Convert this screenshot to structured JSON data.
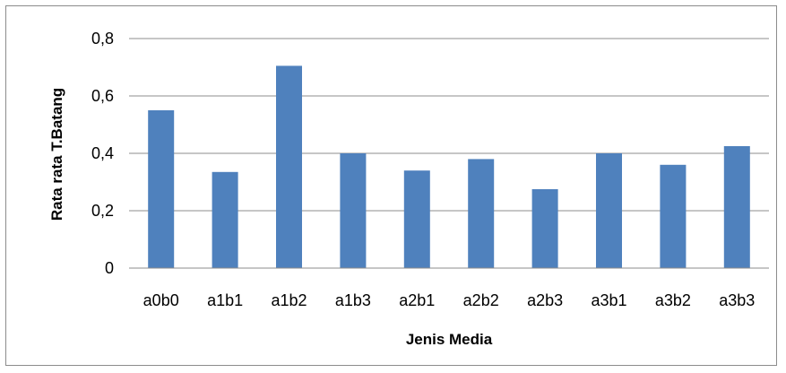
{
  "chart_data": {
    "type": "bar",
    "title": "",
    "xlabel": "Jenis Media",
    "ylabel": "Rata rata T.Batang",
    "categories": [
      "a0b0",
      "a1b1",
      "a1b2",
      "a1b3",
      "a2b1",
      "a2b2",
      "a2b3",
      "a3b1",
      "a3b2",
      "a3b3"
    ],
    "values": [
      0.55,
      0.335,
      0.705,
      0.4,
      0.34,
      0.38,
      0.275,
      0.4,
      0.36,
      0.425
    ],
    "ylim": [
      0,
      0.8
    ],
    "yticks": [
      "0",
      "0,2",
      "0,4",
      "0,6",
      "0,8"
    ],
    "ytick_values": [
      0,
      0.2,
      0.4,
      0.6,
      0.8
    ],
    "grid": true,
    "legend": "none",
    "bar_color": "#4f81bd",
    "grid_color": "#8c8c8c"
  }
}
